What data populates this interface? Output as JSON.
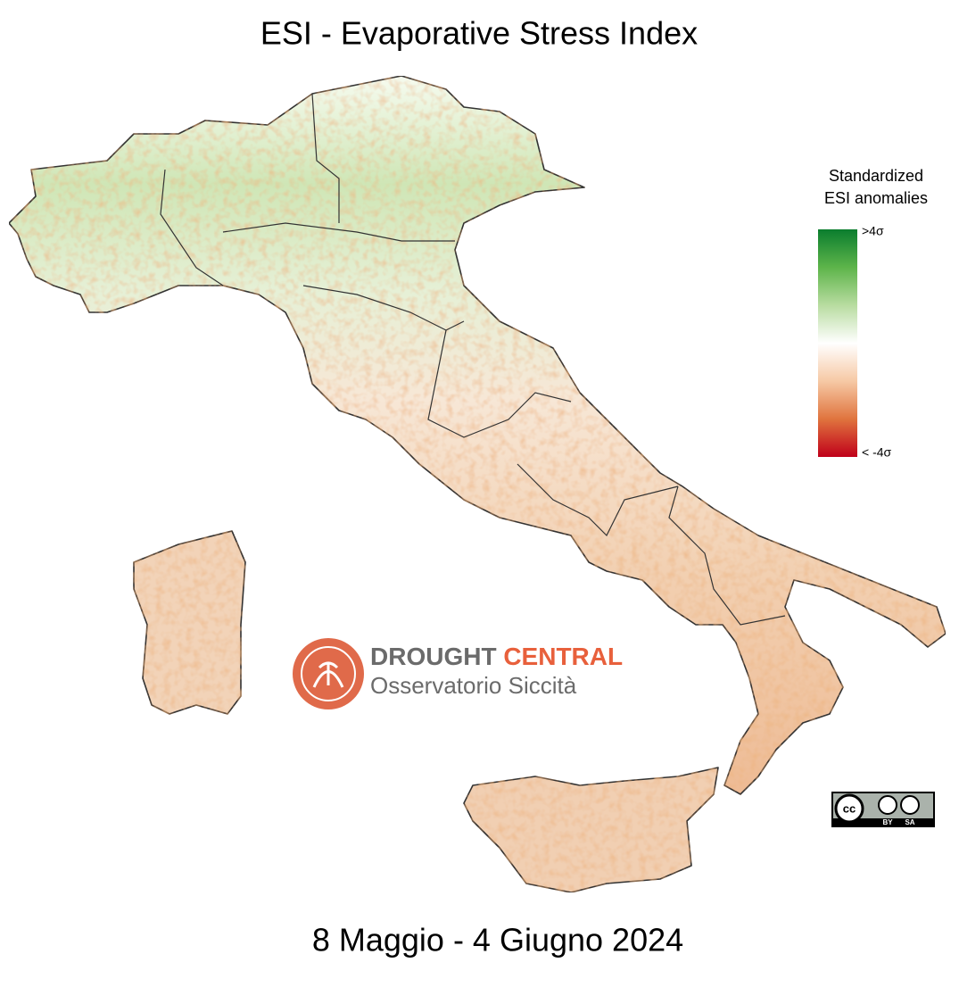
{
  "title": "ESI - Evaporative Stress Index",
  "subtitle": "8 Maggio - 4 Giugno 2024",
  "legend": {
    "title_lines": [
      "Standardized",
      "ESI anomalies"
    ],
    "max_label": ">4σ",
    "min_label": "< -4σ",
    "colors": [
      "#0a7d2e",
      "#5db44a",
      "#b8dca0",
      "#ffffff",
      "#f6c9a5",
      "#e0743e",
      "#c0001a"
    ]
  },
  "logo": {
    "title_part1": "DROUGHT",
    "title_part2": "CENTRAL",
    "subtitle": "Osservatorio Siccità"
  },
  "license": {
    "badge": "cc",
    "labels": [
      "BY",
      "SA"
    ]
  }
}
